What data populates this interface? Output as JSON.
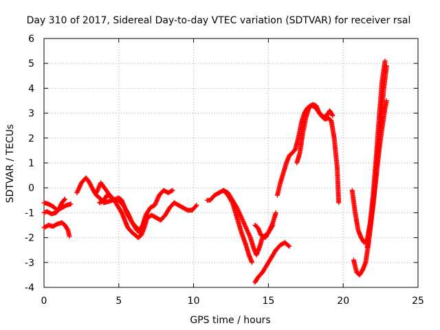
{
  "chart_data": {
    "type": "scatter",
    "title": "Day 310 of 2017, Sidereal Day-to-day VTEC variation (SDTVAR) for receiver rsal",
    "xlabel": "GPS time / hours",
    "ylabel": "SDTVAR / TECUs",
    "xlim": [
      0,
      25
    ],
    "ylim": [
      -4,
      6
    ],
    "xticks": [
      "0",
      "5",
      "10",
      "15",
      "20",
      "25"
    ],
    "yticks": [
      "-4",
      "-3",
      "-2",
      "-1",
      "0",
      "1",
      "2",
      "3",
      "4",
      "5",
      "6"
    ],
    "grid": true,
    "marker": "+",
    "color": "#ff0000",
    "series": [
      {
        "x": [
          0.0,
          0.3,
          0.6,
          0.9,
          1.2,
          1.5,
          1.8
        ],
        "y": [
          -0.6,
          -0.65,
          -0.75,
          -0.9,
          -0.8,
          -0.7,
          -0.65
        ]
      },
      {
        "x": [
          0.0,
          0.2,
          0.5,
          0.8,
          1.0,
          1.2,
          1.4
        ],
        "y": [
          -1.0,
          -0.95,
          -1.05,
          -1.0,
          -0.85,
          -0.6,
          -0.45
        ]
      },
      {
        "x": [
          0.0,
          0.3,
          0.6,
          0.9,
          1.2,
          1.4,
          1.6,
          1.7
        ],
        "y": [
          -1.6,
          -1.5,
          -1.55,
          -1.45,
          -1.4,
          -1.5,
          -1.7,
          -1.95
        ]
      },
      {
        "x": [
          2.2,
          2.5,
          2.8,
          3.0,
          3.3,
          3.5,
          3.8,
          4.0,
          4.3,
          4.6,
          5.0,
          5.2,
          5.4,
          5.6,
          5.9,
          6.2,
          6.4,
          6.6,
          6.8,
          7.1,
          7.4,
          7.7,
          8.0,
          8.3,
          8.6
        ],
        "y": [
          -0.2,
          0.2,
          0.4,
          0.25,
          -0.1,
          -0.3,
          -0.45,
          -0.6,
          -0.55,
          -0.5,
          -0.4,
          -0.5,
          -0.8,
          -1.1,
          -1.4,
          -1.7,
          -1.8,
          -1.5,
          -1.1,
          -0.8,
          -0.7,
          -0.3,
          -0.1,
          -0.2,
          -0.1
        ]
      },
      {
        "x": [
          3.7,
          4.0,
          4.2,
          4.5,
          4.7,
          5.0,
          5.2,
          5.4,
          5.6,
          5.9,
          6.1,
          6.3,
          6.5,
          6.7,
          6.9,
          7.2,
          7.5,
          7.8,
          8.1,
          8.4,
          8.7,
          9.0,
          9.3,
          9.6,
          9.9,
          10.2
        ],
        "y": [
          -0.6,
          -0.5,
          -0.3,
          -0.35,
          -0.5,
          -0.8,
          -1.0,
          -1.3,
          -1.6,
          -1.8,
          -1.9,
          -2.0,
          -1.9,
          -1.6,
          -1.2,
          -1.1,
          -1.2,
          -1.3,
          -1.1,
          -0.8,
          -0.6,
          -0.7,
          -0.8,
          -0.9,
          -0.9,
          -0.7
        ]
      },
      {
        "x": [
          3.5,
          3.8,
          4.1,
          4.4,
          4.7,
          5.0,
          5.3,
          5.6,
          5.9,
          6.2,
          6.4,
          6.6,
          6.8
        ],
        "y": [
          -0.2,
          0.2,
          -0.05,
          -0.3,
          -0.5,
          -0.5,
          -0.7,
          -1.0,
          -1.4,
          -1.6,
          -1.7,
          -1.5,
          -1.2
        ]
      },
      {
        "x": [
          10.9,
          11.1,
          11.4,
          11.7,
          12.0,
          12.3,
          12.6,
          12.9,
          13.2,
          13.5,
          13.8,
          14.0,
          14.2,
          14.4,
          14.6,
          14.8,
          15.0,
          15.3
        ],
        "y": [
          -0.5,
          -0.5,
          -0.3,
          -0.2,
          -0.1,
          -0.2,
          -0.5,
          -0.8,
          -1.2,
          -1.6,
          -2.0,
          -2.4,
          -2.7,
          -2.4,
          -2.0,
          -1.9,
          -1.8,
          -1.5
        ]
      },
      {
        "x": [
          12.0,
          12.3,
          12.6,
          12.9,
          13.2,
          13.5,
          13.7,
          13.9
        ],
        "y": [
          -0.1,
          -0.3,
          -0.6,
          -1.2,
          -1.8,
          -2.3,
          -2.7,
          -3.0
        ]
      },
      {
        "x": [
          14.1,
          14.3,
          14.6,
          14.9,
          15.2,
          15.5,
          15.8,
          16.1,
          16.4
        ],
        "y": [
          -3.8,
          -3.6,
          -3.4,
          -3.1,
          -2.8,
          -2.5,
          -2.3,
          -2.2,
          -2.35
        ]
      },
      {
        "x": [
          14.1,
          14.3,
          14.5,
          14.8,
          15.0,
          15.3,
          15.5
        ],
        "y": [
          -1.5,
          -1.6,
          -1.9,
          -2.0,
          -1.8,
          -1.4,
          -1.0
        ]
      },
      {
        "x": [
          15.6,
          15.8,
          16.0,
          16.2,
          16.4,
          16.6,
          16.8,
          17.0,
          17.2,
          17.4,
          17.6,
          17.8,
          18.0,
          18.2,
          18.4,
          18.6,
          18.8,
          19.0,
          19.2,
          19.4,
          19.6,
          19.7
        ],
        "y": [
          -0.3,
          0.2,
          0.6,
          1.0,
          1.3,
          1.4,
          1.55,
          2.0,
          2.6,
          3.0,
          3.2,
          3.3,
          3.35,
          3.3,
          3.0,
          2.85,
          2.75,
          2.8,
          2.7,
          2.0,
          0.8,
          -0.6
        ]
      },
      {
        "x": [
          16.9,
          17.1,
          17.3,
          17.5,
          17.7,
          17.9,
          18.1,
          18.3,
          18.5,
          18.7,
          18.9,
          19.1,
          19.3
        ],
        "y": [
          1.0,
          1.4,
          2.2,
          2.8,
          3.2,
          3.3,
          3.25,
          3.1,
          2.95,
          2.85,
          2.9,
          3.1,
          2.9
        ]
      },
      {
        "x": [
          20.6,
          20.8,
          21.0,
          21.2,
          21.4,
          21.6,
          21.8,
          22.0,
          22.2,
          22.4,
          22.6,
          22.8
        ],
        "y": [
          -0.1,
          -1.0,
          -1.7,
          -2.0,
          -2.2,
          -2.1,
          -1.4,
          -0.3,
          1.2,
          2.8,
          4.3,
          5.1
        ]
      },
      {
        "x": [
          20.7,
          20.9,
          21.1,
          21.3,
          21.5,
          21.7,
          21.9,
          22.1,
          22.3,
          22.5,
          22.7,
          22.9
        ],
        "y": [
          -2.9,
          -3.4,
          -3.5,
          -3.3,
          -3.0,
          -2.2,
          -1.2,
          0.0,
          1.3,
          2.6,
          3.9,
          4.9
        ]
      },
      {
        "x": [
          21.6,
          21.8,
          22.0,
          22.2,
          22.4,
          22.6,
          22.8,
          22.9
        ],
        "y": [
          -2.4,
          -1.6,
          -0.7,
          0.4,
          1.5,
          2.4,
          3.2,
          3.5
        ]
      }
    ]
  }
}
